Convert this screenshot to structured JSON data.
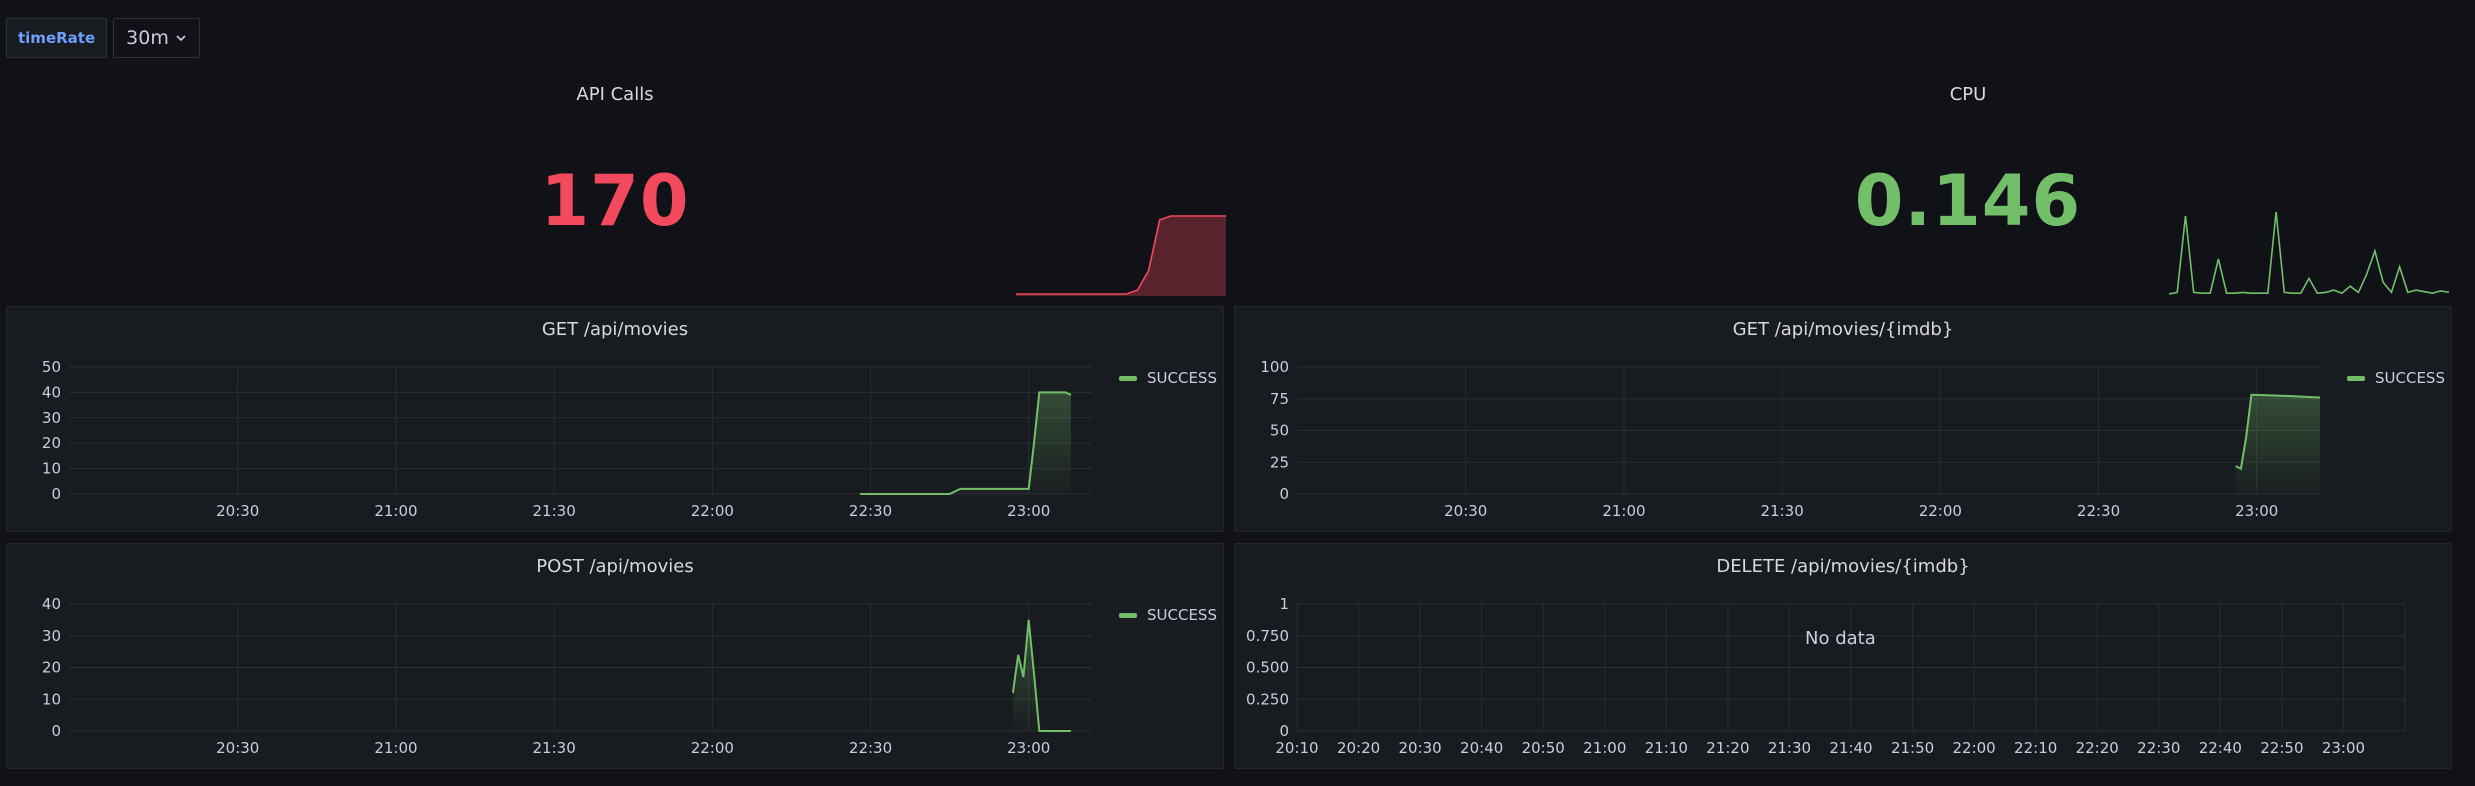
{
  "toolbar": {
    "variable_label": "timeRate",
    "variable_value": "30m"
  },
  "colors": {
    "red": "#f2495c",
    "green": "#73bf69",
    "grid": "#2b2e33",
    "text": "#ccccdc"
  },
  "stats": [
    {
      "title": "API Calls",
      "value": "170",
      "color": "#f2495c"
    },
    {
      "title": "CPU",
      "value": "0.146",
      "color": "#73bf69"
    }
  ],
  "panels": {
    "get_movies": {
      "title": "GET /api/movies",
      "legend": "SUCCESS"
    },
    "get_movie_imdb": {
      "title": "GET /api/movies/{imdb}",
      "legend": "SUCCESS"
    },
    "post_movies": {
      "title": "POST /api/movies",
      "legend": "SUCCESS"
    },
    "delete_movie_imdb": {
      "title": "DELETE /api/movies/{imdb}",
      "no_data": "No data"
    }
  },
  "chart_data": [
    {
      "panel": "API Calls",
      "type": "area",
      "x": [
        0,
        1,
        2,
        3,
        4,
        5,
        6,
        7,
        8,
        9,
        10,
        11,
        12,
        13,
        14,
        15,
        16,
        17,
        18,
        19
      ],
      "y": [
        0,
        0,
        0,
        0,
        0,
        0,
        0,
        0,
        0,
        0,
        0,
        5,
        30,
        95,
        100,
        100,
        100,
        100,
        100,
        100
      ]
    },
    {
      "panel": "CPU",
      "type": "line",
      "x": [
        0,
        1,
        2,
        3,
        4,
        5,
        6,
        7,
        8,
        9,
        10,
        11,
        12,
        13,
        14,
        15,
        16,
        17,
        18,
        19,
        20,
        21,
        22,
        23,
        24,
        25,
        26,
        27,
        28,
        29,
        30,
        31,
        32,
        33,
        34
      ],
      "y": [
        0,
        2,
        100,
        2,
        1,
        1,
        45,
        1,
        1,
        2,
        1,
        1,
        1,
        105,
        2,
        1,
        1,
        20,
        1,
        2,
        5,
        1,
        10,
        2,
        25,
        55,
        15,
        2,
        35,
        2,
        5,
        3,
        1,
        4,
        2
      ]
    },
    {
      "panel": "GET /api/movies",
      "type": "line",
      "series": [
        {
          "name": "SUCCESS",
          "x": [
            "22:28",
            "22:45",
            "22:47",
            "22:54",
            "23:00",
            "23:01",
            "23:02",
            "23:03",
            "23:07",
            "23:08"
          ],
          "y": [
            0,
            0,
            2,
            2,
            2,
            20,
            40,
            40,
            40,
            39
          ]
        }
      ],
      "xticks": [
        "20:30",
        "21:00",
        "21:30",
        "22:00",
        "22:30",
        "23:00"
      ],
      "yticks": [
        0,
        10,
        20,
        30,
        40,
        50
      ],
      "ylim": [
        0,
        50
      ]
    },
    {
      "panel": "GET /api/movies/{imdb}",
      "type": "line",
      "series": [
        {
          "name": "SUCCESS",
          "x": [
            "22:56",
            "22:57",
            "22:58",
            "22:59",
            "23:00",
            "23:07",
            "23:12"
          ],
          "y": [
            22,
            20,
            45,
            78,
            78,
            77,
            76
          ]
        }
      ],
      "xticks": [
        "20:30",
        "21:00",
        "21:30",
        "22:00",
        "22:30",
        "23:00"
      ],
      "yticks": [
        0,
        25,
        50,
        75,
        100
      ],
      "ylim": [
        0,
        100
      ]
    },
    {
      "panel": "POST /api/movies",
      "type": "line",
      "series": [
        {
          "name": "SUCCESS",
          "x": [
            "22:57",
            "22:58",
            "22:59",
            "23:00",
            "23:01",
            "23:02",
            "23:08"
          ],
          "y": [
            12,
            24,
            17,
            35,
            18,
            0,
            0
          ]
        }
      ],
      "xticks": [
        "20:30",
        "21:00",
        "21:30",
        "22:00",
        "22:30",
        "23:00"
      ],
      "yticks": [
        0,
        10,
        20,
        30,
        40
      ],
      "ylim": [
        0,
        40
      ]
    },
    {
      "panel": "DELETE /api/movies/{imdb}",
      "type": "line",
      "series": [],
      "xticks": [
        "20:10",
        "20:20",
        "20:30",
        "20:40",
        "20:50",
        "21:00",
        "21:10",
        "21:20",
        "21:30",
        "21:40",
        "21:50",
        "22:00",
        "22:10",
        "22:20",
        "22:30",
        "22:40",
        "22:50",
        "23:00"
      ],
      "yticks": [
        "0",
        "0.250",
        "0.500",
        "0.750",
        "1"
      ],
      "ylim": [
        0,
        1
      ]
    }
  ]
}
